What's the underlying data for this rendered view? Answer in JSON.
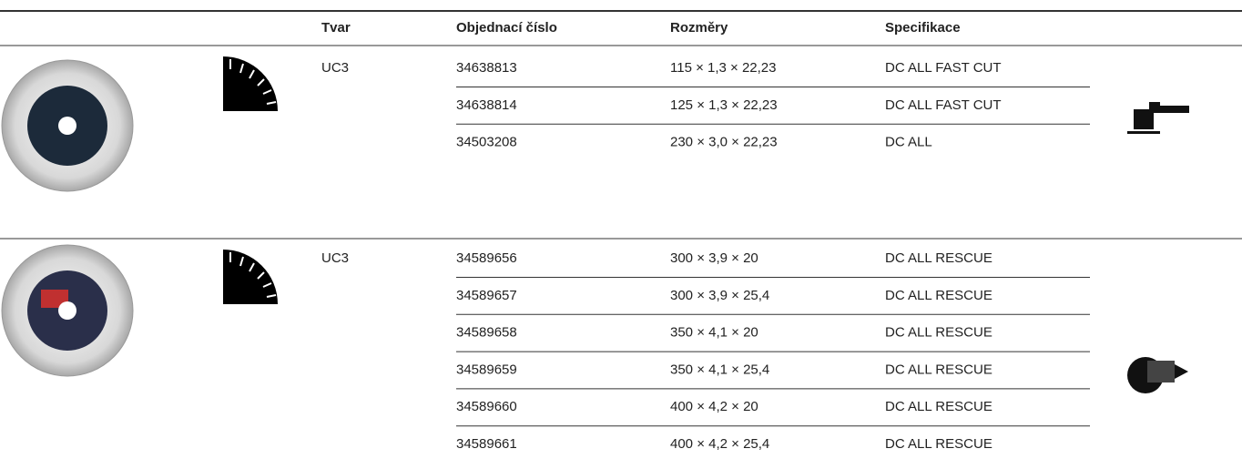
{
  "header": {
    "shape": "Tvar",
    "order": "Objednací číslo",
    "dims": "Rozměry",
    "spec": "Specifikace"
  },
  "groups": [
    {
      "shape": "UC3",
      "rows": [
        [
          "34638813",
          "115 × 1,3 × 22,23",
          "DC ALL FAST CUT"
        ],
        [
          "34638814",
          "125 × 1,3 × 22,23",
          "DC ALL FAST CUT"
        ],
        [
          "34503208",
          "230 × 3,0 × 22,23",
          "DC ALL"
        ]
      ]
    },
    {
      "shape": "UC3",
      "rows": [
        [
          "34589656",
          "300 × 3,9 × 20",
          "DC ALL RESCUE"
        ],
        [
          "34589657",
          "300 × 3,9 × 25,4",
          "DC ALL RESCUE"
        ],
        [
          "34589658",
          "350 × 4,1 × 20",
          "DC ALL RESCUE"
        ],
        [
          "34589659",
          "350 × 4,1 × 25,4",
          "DC ALL RESCUE"
        ],
        [
          "34589660",
          "400 × 4,2 × 20",
          "DC ALL RESCUE"
        ],
        [
          "34589661",
          "400 × 4,2 × 25,4",
          "DC ALL RESCUE"
        ]
      ]
    }
  ]
}
